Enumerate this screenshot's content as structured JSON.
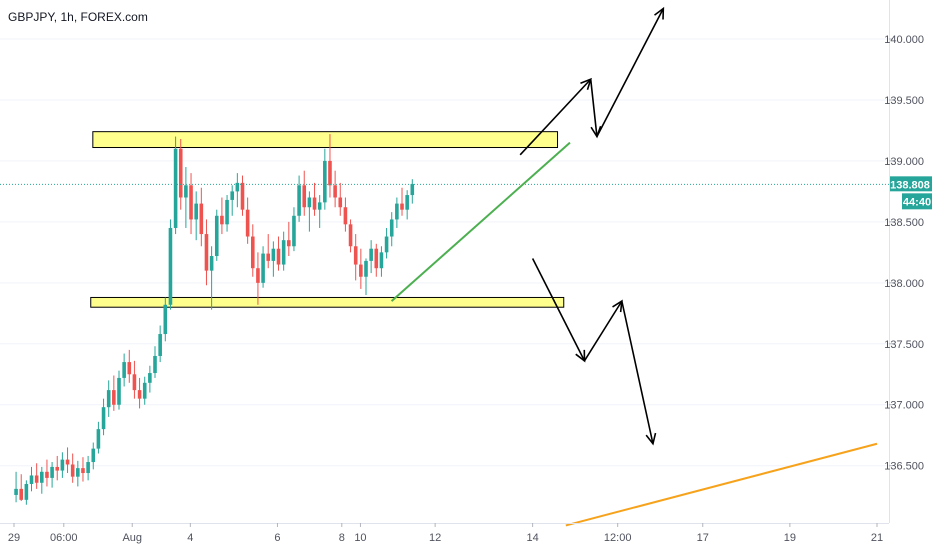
{
  "chart_data": {
    "type": "candlestick",
    "title": "GBPJPY, 1h, FOREX.com",
    "symbol": "GBPJPY",
    "interval": "1h",
    "source": "FOREX.com",
    "current_price": 138.808,
    "price_label": "138.808",
    "countdown_label": "44:40",
    "ylim": [
      136.03,
      140.32
    ],
    "y_ticks": [
      "140.000",
      "139.500",
      "139.000",
      "138.500",
      "138.000",
      "137.500",
      "137.000",
      "136.500"
    ],
    "y_tick_values": [
      140.0,
      139.5,
      139.0,
      138.5,
      138.0,
      137.5,
      137.0,
      136.5
    ],
    "x_ticks": [
      "29",
      "06:00",
      "Aug",
      "4",
      "6",
      "8",
      "10",
      "12",
      "14",
      "12:00",
      "17",
      "19",
      "21"
    ],
    "x_range_bars": [
      0,
      416
    ],
    "x_tick_bars": [
      0,
      24,
      57,
      85,
      127,
      158,
      167,
      203,
      250,
      291,
      332,
      374,
      416
    ],
    "candles": [
      [
        136.26,
        136.45,
        136.2,
        136.31
      ],
      [
        136.31,
        136.43,
        136.21,
        136.22
      ],
      [
        136.22,
        136.38,
        136.18,
        136.35
      ],
      [
        136.35,
        136.49,
        136.29,
        136.42
      ],
      [
        136.42,
        136.52,
        136.31,
        136.36
      ],
      [
        136.36,
        136.49,
        136.27,
        136.45
      ],
      [
        136.45,
        136.55,
        136.33,
        136.4
      ],
      [
        136.4,
        136.53,
        136.32,
        136.49
      ],
      [
        136.49,
        136.58,
        136.38,
        136.46
      ],
      [
        136.46,
        136.61,
        136.4,
        136.55
      ],
      [
        136.55,
        136.65,
        136.44,
        136.51
      ],
      [
        136.51,
        136.6,
        136.36,
        136.41
      ],
      [
        136.41,
        136.54,
        136.33,
        136.48
      ],
      [
        136.48,
        136.57,
        136.37,
        136.44
      ],
      [
        136.44,
        136.58,
        136.38,
        136.53
      ],
      [
        136.53,
        136.69,
        136.47,
        136.64
      ],
      [
        136.64,
        136.86,
        136.6,
        136.8
      ],
      [
        136.8,
        137.05,
        136.75,
        136.98
      ],
      [
        136.98,
        137.2,
        136.9,
        137.12
      ],
      [
        137.12,
        137.24,
        136.95,
        137.0
      ],
      [
        137.0,
        137.28,
        136.96,
        137.22
      ],
      [
        137.22,
        137.42,
        137.15,
        137.35
      ],
      [
        137.35,
        137.45,
        137.18,
        137.25
      ],
      [
        137.25,
        137.36,
        137.05,
        137.12
      ],
      [
        137.12,
        137.22,
        136.97,
        137.05
      ],
      [
        137.05,
        137.23,
        137.0,
        137.18
      ],
      [
        137.18,
        137.32,
        137.1,
        137.26
      ],
      [
        137.26,
        137.48,
        137.22,
        137.4
      ],
      [
        137.4,
        137.65,
        137.35,
        137.58
      ],
      [
        137.58,
        137.88,
        137.52,
        137.82
      ],
      [
        137.82,
        138.52,
        137.78,
        138.45
      ],
      [
        138.45,
        139.2,
        138.4,
        139.1
      ],
      [
        139.1,
        139.18,
        138.6,
        138.7
      ],
      [
        138.7,
        138.95,
        138.45,
        138.8
      ],
      [
        138.8,
        138.9,
        138.4,
        138.52
      ],
      [
        138.52,
        138.75,
        138.35,
        138.65
      ],
      [
        138.65,
        138.78,
        138.3,
        138.4
      ],
      [
        138.4,
        138.52,
        137.98,
        138.1
      ],
      [
        138.1,
        138.3,
        137.78,
        138.22
      ],
      [
        138.22,
        138.6,
        138.18,
        138.55
      ],
      [
        138.55,
        138.7,
        138.4,
        138.48
      ],
      [
        138.48,
        138.72,
        138.42,
        138.68
      ],
      [
        138.68,
        138.8,
        138.55,
        138.75
      ],
      [
        138.75,
        138.9,
        138.62,
        138.82
      ],
      [
        138.82,
        138.88,
        138.55,
        138.6
      ],
      [
        138.6,
        138.7,
        138.32,
        138.38
      ],
      [
        138.38,
        138.48,
        138.05,
        138.12
      ],
      [
        138.12,
        138.25,
        137.82,
        138.0
      ],
      [
        138.0,
        138.3,
        137.96,
        138.24
      ],
      [
        138.24,
        138.4,
        138.12,
        138.18
      ],
      [
        138.18,
        138.34,
        138.05,
        138.28
      ],
      [
        138.28,
        138.38,
        138.1,
        138.15
      ],
      [
        138.15,
        138.42,
        138.1,
        138.35
      ],
      [
        138.35,
        138.5,
        138.22,
        138.3
      ],
      [
        138.3,
        138.62,
        138.26,
        138.55
      ],
      [
        138.55,
        138.88,
        138.5,
        138.8
      ],
      [
        138.8,
        138.92,
        138.55,
        138.62
      ],
      [
        138.62,
        138.75,
        138.42,
        138.7
      ],
      [
        138.7,
        138.82,
        138.55,
        138.6
      ],
      [
        138.6,
        138.72,
        138.45,
        138.66
      ],
      [
        138.66,
        139.1,
        138.6,
        139.0
      ],
      [
        139.0,
        139.22,
        138.7,
        138.8
      ],
      [
        138.8,
        138.92,
        138.62,
        138.7
      ],
      [
        138.7,
        138.82,
        138.55,
        138.62
      ],
      [
        138.62,
        138.7,
        138.42,
        138.48
      ],
      [
        138.48,
        138.52,
        138.25,
        138.3
      ],
      [
        138.3,
        138.4,
        138.02,
        138.15
      ],
      [
        138.15,
        138.28,
        137.95,
        138.05
      ],
      [
        138.05,
        138.2,
        137.9,
        138.18
      ],
      [
        138.18,
        138.35,
        138.08,
        138.28
      ],
      [
        138.28,
        138.32,
        138.05,
        138.12
      ],
      [
        138.12,
        138.3,
        138.05,
        138.25
      ],
      [
        138.25,
        138.45,
        138.2,
        138.38
      ],
      [
        138.38,
        138.58,
        138.3,
        138.52
      ],
      [
        138.52,
        138.7,
        138.45,
        138.65
      ],
      [
        138.65,
        138.78,
        138.55,
        138.6
      ],
      [
        138.6,
        138.76,
        138.52,
        138.72
      ],
      [
        138.72,
        138.85,
        138.65,
        138.81
      ]
    ],
    "support_zone": [
      137.8,
      137.88
    ],
    "resistance_zone": [
      139.11,
      139.24
    ],
    "trendline_green": {
      "from": [
        182,
        137.85
      ],
      "to": [
        268,
        139.15
      ]
    },
    "trendline_orange": {
      "from": [
        266,
        136.01
      ],
      "to": [
        416,
        136.68
      ]
    },
    "arrows_up_path": [
      [
        244,
        139.05
      ],
      [
        278,
        139.67
      ],
      [
        281,
        139.2
      ],
      [
        313,
        140.25
      ]
    ],
    "arrows_down_path": [
      [
        250,
        138.2
      ],
      [
        275,
        137.36
      ],
      [
        293,
        137.85
      ],
      [
        308,
        136.68
      ]
    ],
    "colors": {
      "up": "#26a69a",
      "down": "#ef5350",
      "zone_fill": "#ffff8d",
      "price_line": "#26a69a",
      "green_line": "#4caf50",
      "orange_line": "#f7a21b",
      "arrow": "#000000"
    }
  }
}
